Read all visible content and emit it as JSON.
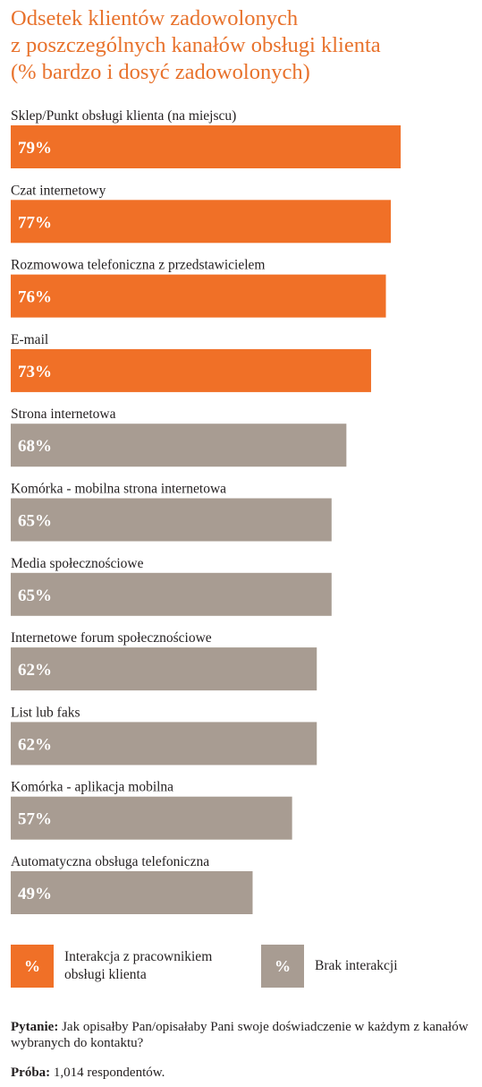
{
  "title_lines": [
    "Odsetek klientów zadowolonych",
    "z poszczególnych kanałów obsługi klienta",
    "(% bardzo i dosyć zadowolonych)"
  ],
  "chart_data": {
    "type": "bar",
    "orientation": "horizontal",
    "title": "Odsetek klientów zadowolonych z poszczególnych kanałów obsługi klienta (% bardzo i dosyć zadowolonych)",
    "categories": [
      "Sklep/Punkt obsługi klienta (na miejscu)",
      "Czat internetowy",
      "Rozmowowa telefoniczna z przedstawicielem",
      "E-mail",
      "Strona internetowa",
      "Komórka - mobilna strona internetowa",
      "Media społecznościowe",
      "Internetowe forum społecznościowe",
      "List lub faks",
      "Komórka - aplikacja mobilna",
      "Automatyczna obsługa telefoniczna"
    ],
    "values": [
      79,
      77,
      76,
      73,
      68,
      65,
      65,
      62,
      62,
      57,
      49
    ],
    "value_labels": [
      "79%",
      "77%",
      "76%",
      "73%",
      "68%",
      "65%",
      "65%",
      "62%",
      "62%",
      "57%",
      "49%"
    ],
    "groups": [
      "a",
      "a",
      "a",
      "a",
      "b",
      "b",
      "b",
      "b",
      "b",
      "b",
      "b"
    ],
    "colors": {
      "a": "#f07027",
      "b": "#a89c92"
    },
    "xlim": [
      0,
      100
    ],
    "grid": false
  },
  "legend": {
    "a": {
      "symbol": "%",
      "label": "Interakcja z pracownikiem\nobsługi klienta"
    },
    "b": {
      "symbol": "%",
      "label": "Brak interakcji"
    }
  },
  "notes": {
    "question_label": "Pytanie:",
    "question_text": " Jak opisałby Pan/opisałaby Pani swoje doświadczenie w każdym z kanałów wybranych do kontaktu?",
    "sample_label": "Próba:",
    "sample_text": " 1,014 respondentów."
  }
}
